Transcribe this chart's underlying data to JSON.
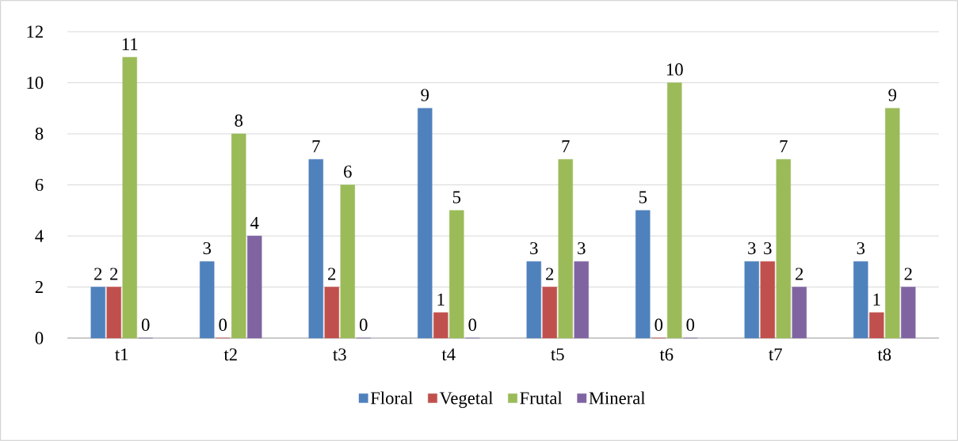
{
  "chart_data": {
    "type": "bar",
    "categories": [
      "t1",
      "t2",
      "t3",
      "t4",
      "t5",
      "t6",
      "t7",
      "t8"
    ],
    "series": [
      {
        "name": "Floral",
        "color": "#4f81bd",
        "values": [
          2,
          3,
          7,
          9,
          3,
          5,
          3,
          3
        ]
      },
      {
        "name": "Vegetal",
        "color": "#c0504d",
        "values": [
          2,
          0,
          2,
          1,
          2,
          0,
          3,
          1
        ]
      },
      {
        "name": "Frutal",
        "color": "#9bbb59",
        "values": [
          11,
          8,
          6,
          5,
          7,
          10,
          7,
          9
        ]
      },
      {
        "name": "Mineral",
        "color": "#8064a2",
        "values": [
          0,
          4,
          0,
          0,
          3,
          0,
          2,
          2
        ]
      }
    ],
    "ylim": [
      0,
      12
    ],
    "yticks": [
      0,
      2,
      4,
      6,
      8,
      10,
      12
    ],
    "grid": "y",
    "legend": "bottom",
    "data_labels": true
  }
}
